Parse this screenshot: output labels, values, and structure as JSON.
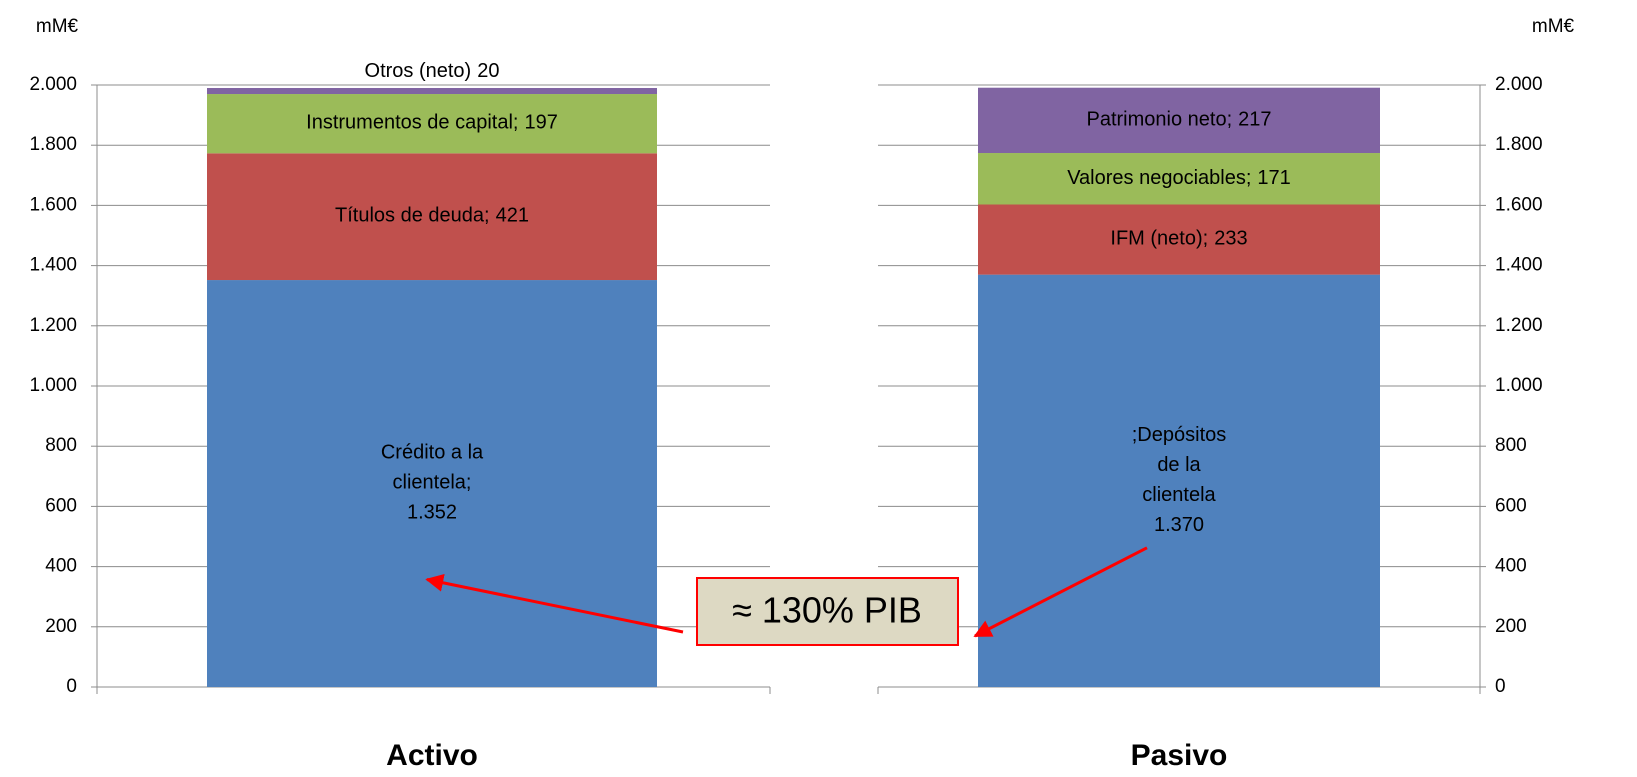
{
  "chart_data": [
    {
      "type": "bar",
      "stacked": true,
      "axis_side": "left",
      "ylabel": "mM€",
      "categories": [
        "Activo"
      ],
      "series": [
        {
          "name": "Crédito a la clientela",
          "label_sep": ";",
          "color": "#4f81bd",
          "values": [
            1352
          ],
          "value_labels": [
            "1.352"
          ]
        },
        {
          "name": "Títulos de deuda",
          "label_sep": ";",
          "color": "#c0504d",
          "values": [
            421
          ]
        },
        {
          "name": "Instrumentos de capital",
          "label_sep": ";",
          "color": "#9bbb59",
          "values": [
            197
          ]
        },
        {
          "name": "Otros (neto)",
          "color": "#8064a2",
          "values": [
            20
          ]
        }
      ],
      "ylim": [
        0,
        2000
      ],
      "yticks": [
        0,
        200,
        400,
        600,
        800,
        {
          "value": 1000,
          "label": "1.000"
        },
        {
          "value": 1200,
          "label": "1.200"
        },
        {
          "value": 1400,
          "label": "1.400"
        },
        {
          "value": 1600,
          "label": "1.600"
        },
        {
          "value": 1800,
          "label": "1.800"
        },
        {
          "value": 2000,
          "label": "2.000"
        }
      ],
      "grid": true,
      "annotation": "≈ 130% PIB"
    },
    {
      "type": "bar",
      "stacked": true,
      "axis_side": "right",
      "ylabel": "mM€",
      "categories": [
        "Pasivo"
      ],
      "series": [
        {
          "name": "Depósitos de la clientela",
          "label_prefix": ";",
          "color": "#4f81bd",
          "values": [
            1370
          ],
          "value_labels": [
            "1.370"
          ]
        },
        {
          "name": "IFM (neto)",
          "label_sep": ";",
          "color": "#c0504d",
          "values": [
            233
          ]
        },
        {
          "name": "Valores negociables",
          "label_sep": ";",
          "color": "#9bbb59",
          "values": [
            171
          ]
        },
        {
          "name": "Patrimonio neto",
          "label_sep": ";",
          "color": "#8064a2",
          "values": [
            217
          ]
        }
      ],
      "ylim": [
        0,
        2000
      ],
      "yticks": [
        0,
        200,
        400,
        600,
        800,
        {
          "value": 1000,
          "label": "1.000"
        },
        {
          "value": 1200,
          "label": "1.200"
        },
        {
          "value": 1400,
          "label": "1.400"
        },
        {
          "value": 1600,
          "label": "1.600"
        },
        {
          "value": 1800,
          "label": "1.800"
        },
        {
          "value": 2000,
          "label": "2.000"
        }
      ],
      "grid": true
    }
  ]
}
